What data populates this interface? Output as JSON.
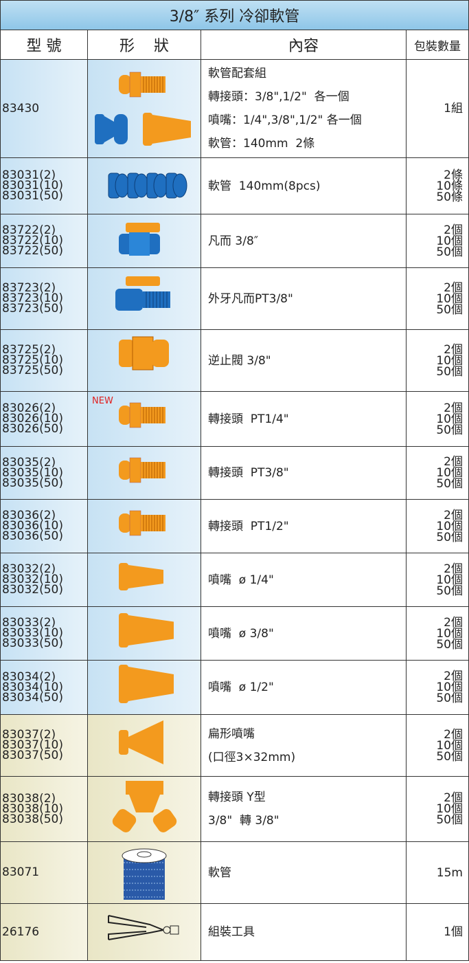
{
  "title": "3/8″ 系列 冷卻軟管",
  "headers": [
    "型 號",
    "形    狀",
    "內容",
    "包裝數量"
  ],
  "rows": [
    {
      "model": [
        "83430"
      ],
      "content": [
        "軟管配套組",
        "轉接頭：3/8\",1/2\"  各一個",
        "噴嘴：1/4\",3/8\",1/2\" 各一個",
        "軟管：140mm  2條"
      ],
      "pack": [
        "1組"
      ]
    },
    {
      "model": [
        "83031(2)",
        "83031(10)",
        "83031(50)"
      ],
      "content": [
        "軟管  140mm(8pcs)"
      ],
      "pack": [
        "2條",
        "10條",
        "50條"
      ]
    },
    {
      "model": [
        "83722(2)",
        "83722(10)",
        "83722(50)"
      ],
      "content": [
        "凡而 3/8″"
      ],
      "pack": [
        "2個",
        "10個",
        "50個"
      ]
    },
    {
      "model": [
        "83723(2)",
        "83723(10)",
        "83723(50)"
      ],
      "content": [
        "外牙凡而PT3/8\""
      ],
      "pack": [
        "2個",
        "10個",
        "50個"
      ]
    },
    {
      "model": [
        "83725(2)",
        "83725(10)",
        "83725(50)"
      ],
      "content": [
        "逆止閥 3/8\""
      ],
      "pack": [
        "2個",
        "10個",
        "50個"
      ]
    },
    {
      "model": [
        "83026(2)",
        "83026(10)",
        "83026(50)"
      ],
      "badge": "NEW",
      "content": [
        "轉接頭  PT1/4\""
      ],
      "pack": [
        "2個",
        "10個",
        "50個"
      ]
    },
    {
      "model": [
        "83035(2)",
        "83035(10)",
        "83035(50)"
      ],
      "content": [
        "轉接頭  PT3/8\""
      ],
      "pack": [
        "2個",
        "10個",
        "50個"
      ]
    },
    {
      "model": [
        "83036(2)",
        "83036(10)",
        "83036(50)"
      ],
      "content": [
        "轉接頭  PT1/2\""
      ],
      "pack": [
        "2個",
        "10個",
        "50個"
      ]
    },
    {
      "model": [
        "83032(2)",
        "83032(10)",
        "83032(50)"
      ],
      "content": [
        "噴嘴  ø 1/4\""
      ],
      "pack": [
        "2個",
        "10個",
        "50個"
      ]
    },
    {
      "model": [
        "83033(2)",
        "83033(10)",
        "83033(50)"
      ],
      "content": [
        "噴嘴  ø 3/8\""
      ],
      "pack": [
        "2個",
        "10個",
        "50個"
      ]
    },
    {
      "model": [
        "83034(2)",
        "83034(10)",
        "83034(50)"
      ],
      "content": [
        "噴嘴  ø 1/2\""
      ],
      "pack": [
        "2個",
        "10個",
        "50個"
      ]
    },
    {
      "model": [
        "83037(2)",
        "83037(10)",
        "83037(50)"
      ],
      "content": [
        "扁形噴嘴",
        "(口徑3×32mm)"
      ],
      "pack": [
        "2個",
        "10個",
        "50個"
      ]
    },
    {
      "model": [
        "83038(2)",
        "83038(10)",
        "83038(50)"
      ],
      "content": [
        "轉接頭 Y型",
        "3/8\"  轉 3/8\""
      ],
      "pack": [
        "2個",
        "10個",
        "50個"
      ]
    },
    {
      "model": [
        "83071"
      ],
      "content": [
        "軟管"
      ],
      "pack": [
        "15m"
      ]
    },
    {
      "model": [
        "26176"
      ],
      "content": [
        "組裝工具"
      ],
      "pack": [
        "1個"
      ]
    }
  ]
}
